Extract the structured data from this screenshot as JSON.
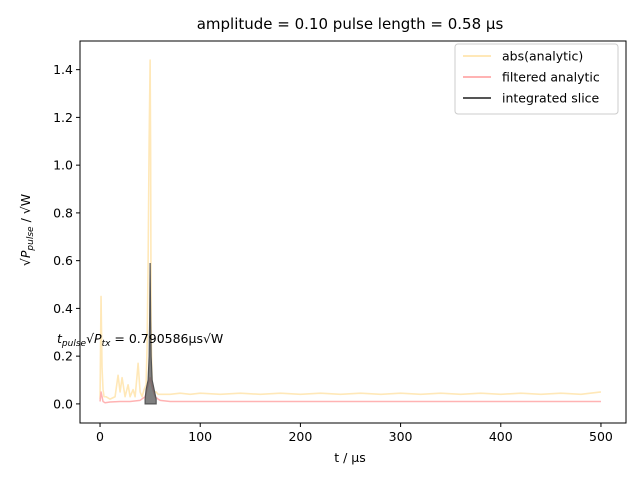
{
  "chart_data": {
    "type": "line",
    "title": "amplitude = 0.10 pulse length = 0.58 µs",
    "xlabel": "t / µs",
    "ylabel": "√P_pulse / √W",
    "xlim": [
      -20,
      525
    ],
    "ylim": [
      -0.08,
      1.52
    ],
    "xticks": [
      0,
      100,
      200,
      300,
      400,
      500
    ],
    "yticks": [
      0.0,
      0.2,
      0.4,
      0.6,
      0.8,
      1.0,
      1.2,
      1.4
    ],
    "xtick_labels": [
      "0",
      "100",
      "200",
      "300",
      "400",
      "500"
    ],
    "ytick_labels": [
      "0.0",
      "0.2",
      "0.4",
      "0.6",
      "0.8",
      "1.0",
      "1.2",
      "1.4"
    ],
    "grid": false,
    "legend_position": "top-right",
    "annotation": {
      "text": "t_pulse √P_tx = 0.790586µs√W",
      "x": -43,
      "y": 0.27
    },
    "series": [
      {
        "name": "abs(analytic)",
        "color": "#ffe8b8",
        "x": [
          0,
          1,
          2,
          3,
          4,
          6,
          10,
          15,
          18,
          20,
          22,
          25,
          28,
          30,
          33,
          35,
          37,
          38,
          40,
          42,
          44,
          46,
          47,
          48,
          49,
          50,
          50.5,
          51,
          52,
          53,
          54,
          56,
          58,
          60,
          70,
          80,
          90,
          100,
          120,
          140,
          160,
          180,
          200,
          220,
          240,
          260,
          280,
          300,
          320,
          340,
          360,
          380,
          400,
          420,
          440,
          460,
          480,
          500
        ],
        "values": [
          0.02,
          0.45,
          0.15,
          0.06,
          0.03,
          0.03,
          0.02,
          0.03,
          0.12,
          0.05,
          0.11,
          0.03,
          0.08,
          0.03,
          0.06,
          0.03,
          0.12,
          0.17,
          0.05,
          0.03,
          0.06,
          0.08,
          0.25,
          0.6,
          1.1,
          1.44,
          1.05,
          0.3,
          0.08,
          0.06,
          0.05,
          0.05,
          0.04,
          0.04,
          0.04,
          0.045,
          0.04,
          0.045,
          0.04,
          0.045,
          0.04,
          0.045,
          0.04,
          0.045,
          0.04,
          0.045,
          0.04,
          0.045,
          0.04,
          0.045,
          0.04,
          0.045,
          0.04,
          0.045,
          0.04,
          0.045,
          0.04,
          0.05
        ]
      },
      {
        "name": "filtered analytic",
        "color": "#ffb3b3",
        "x": [
          0,
          1,
          2,
          3,
          5,
          10,
          20,
          30,
          40,
          45,
          48,
          50,
          52,
          55,
          58,
          60,
          70,
          100,
          150,
          200,
          250,
          300,
          350,
          400,
          450,
          500
        ],
        "values": [
          0.01,
          0.05,
          0.03,
          0.01,
          0.005,
          0.008,
          0.01,
          0.01,
          0.015,
          0.03,
          0.08,
          0.11,
          0.07,
          0.03,
          0.02,
          0.015,
          0.01,
          0.01,
          0.01,
          0.01,
          0.01,
          0.01,
          0.01,
          0.01,
          0.01,
          0.01
        ]
      },
      {
        "name": "integrated slice",
        "color": "#555555",
        "x": [
          45,
          46,
          47,
          48,
          49,
          49.5,
          50,
          50.5,
          51,
          52,
          53,
          54,
          55,
          56
        ],
        "values": [
          0.02,
          0.06,
          0.08,
          0.1,
          0.2,
          0.35,
          0.59,
          0.35,
          0.2,
          0.1,
          0.08,
          0.06,
          0.04,
          0.02
        ]
      }
    ]
  }
}
